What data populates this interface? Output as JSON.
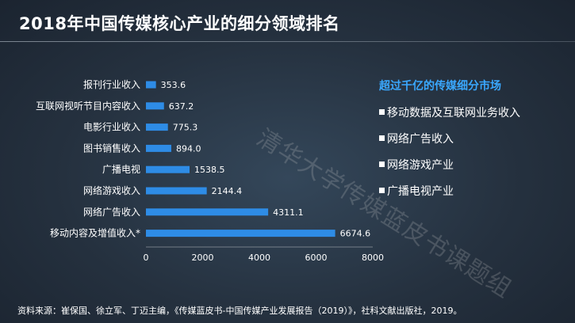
{
  "title": "2018年中国传媒核心产业的细分领域排名",
  "watermark": "清华大学传媒蓝皮书课题组",
  "side_box": {
    "heading": "超过千亿的传媒细分市场",
    "items": [
      "移动数据及互联网业务收入",
      "网络广告收入",
      "网络游戏产业",
      "广播电视产业"
    ]
  },
  "source": "资料来源：崔保国、徐立军、丁迈主编，《传媒蓝皮书-中国传媒产业发展报告（2019）》，社科文献出版社，2019。",
  "colors": {
    "bar": "#2e8ce6",
    "accent": "#3aa8ff",
    "text": "#ffffff"
  },
  "chart_data": {
    "type": "bar",
    "orientation": "horizontal",
    "categories": [
      "报刊行业收入",
      "互联网视听节目内容收入",
      "电影行业收入",
      "图书销售收入",
      "广播电视",
      "网络游戏收入",
      "网络广告收入",
      "移动内容及增值收入*"
    ],
    "values": [
      353.6,
      637.2,
      775.3,
      894.0,
      1538.5,
      2144.4,
      4311.1,
      6674.6
    ],
    "value_labels": [
      "353.6",
      "637.2",
      "775.3",
      "894.0",
      "1538.5",
      "2144.4",
      "4311.1",
      "6674.6"
    ],
    "xticks": [
      0,
      2000,
      4000,
      6000,
      8000
    ],
    "xlim": [
      0,
      8000
    ],
    "grid": false
  }
}
